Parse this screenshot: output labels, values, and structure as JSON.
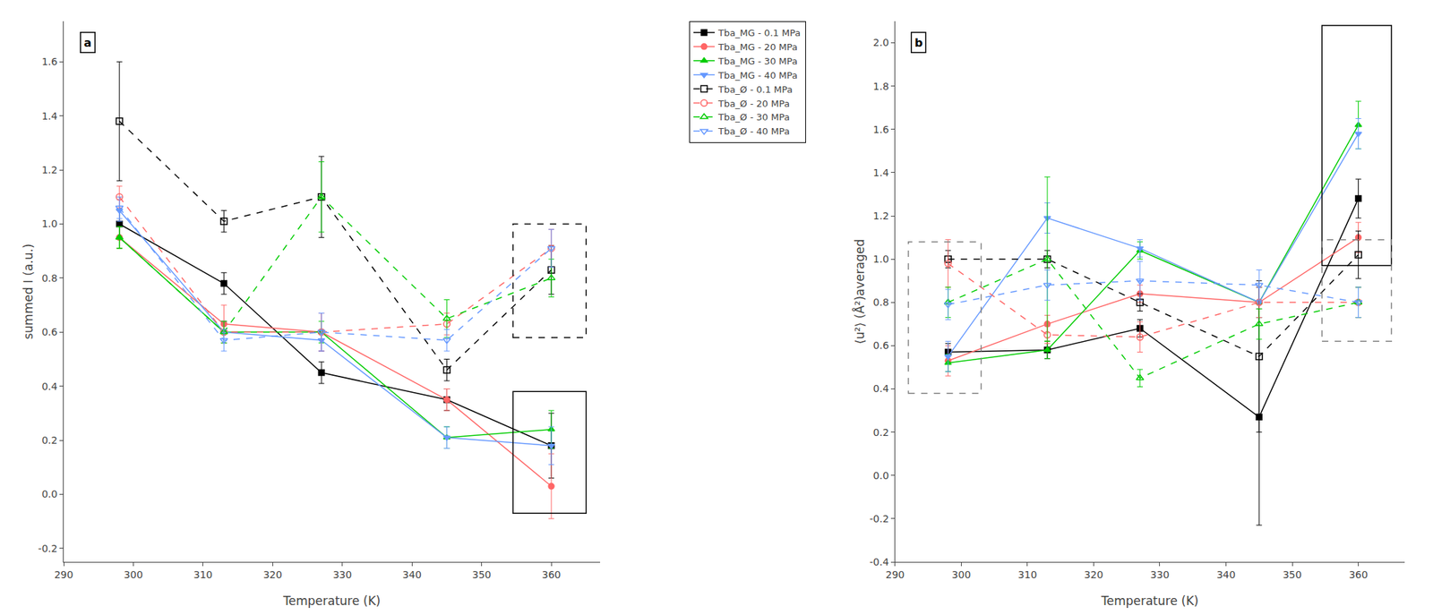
{
  "chart_data": [
    {
      "type": "line",
      "xlabel": "Temperature (K)",
      "ylabel": "summed I (a.u.)",
      "annotations": [
        "a"
      ],
      "x": [
        298,
        313,
        327,
        345,
        360
      ],
      "xlim": [
        290,
        367
      ],
      "xticks": [
        290,
        300,
        310,
        320,
        330,
        340,
        350,
        360
      ],
      "ylim": [
        -0.25,
        1.75
      ],
      "yticks": [
        -0.2,
        {
          "value": 0.0,
          "label": "0.0"
        },
        0.2,
        0.4,
        0.6,
        0.8,
        {
          "value": 1.0,
          "label": "1.0"
        },
        1.2,
        1.4,
        1.6
      ],
      "grid": false,
      "legend": "top",
      "series": [
        {
          "name": "Tba_MG - 0.1 MPa",
          "color": "#000000",
          "marker": "square",
          "line_style": "solid",
          "values": [
            1.0,
            0.78,
            0.45,
            0.35,
            0.18
          ],
          "errors": [
            0.05,
            0.04,
            0.04,
            0.04,
            0.12
          ]
        },
        {
          "name": "Tba_MG - 20 MPa",
          "color": "#ff6666",
          "marker": "circle",
          "line_style": "solid",
          "values": [
            0.95,
            0.63,
            0.6,
            0.35,
            0.03
          ],
          "errors": [
            0.04,
            0.07,
            0.07,
            0.04,
            0.12
          ]
        },
        {
          "name": "Tba_MG - 30 MPa",
          "color": "#00cc00",
          "marker": "triangle-up",
          "line_style": "solid",
          "values": [
            0.95,
            0.6,
            0.6,
            0.21,
            0.24
          ],
          "errors": [
            0.04,
            0.04,
            0.04,
            0.04,
            0.07
          ]
        },
        {
          "name": "Tba_MG - 40 MPa",
          "color": "#6699ff",
          "marker": "triangle-down",
          "line_style": "solid",
          "values": [
            1.05,
            0.6,
            0.57,
            0.21,
            0.18
          ],
          "errors": [
            0.04,
            0.04,
            0.04,
            0.04,
            0.07
          ]
        },
        {
          "name": "Tba_Ø - 0.1 MPa",
          "color": "#000000",
          "marker": "square-open",
          "line_style": "dashed",
          "values": [
            1.38,
            1.01,
            1.1,
            0.46,
            0.83
          ],
          "errors": [
            0.22,
            0.04,
            0.15,
            0.04,
            0.09
          ]
        },
        {
          "name": "Tba_Ø - 20 MPa",
          "color": "#ff6666",
          "marker": "circle-open",
          "line_style": "dashed",
          "values": [
            1.1,
            0.6,
            0.6,
            0.63,
            0.91
          ],
          "errors": [
            0.04,
            0.04,
            0.07,
            0.04,
            0.07
          ]
        },
        {
          "name": "Tba_Ø - 30 MPa",
          "color": "#00cc00",
          "marker": "triangle-up-open",
          "line_style": "dashed",
          "values": [
            0.95,
            0.6,
            1.1,
            0.65,
            0.8
          ],
          "errors": [
            0.04,
            0.04,
            0.13,
            0.07,
            0.07
          ]
        },
        {
          "name": "Tba_Ø - 40 MPa",
          "color": "#6699ff",
          "marker": "triangle-down-open",
          "line_style": "dashed",
          "values": [
            1.06,
            0.57,
            0.6,
            0.57,
            0.91
          ],
          "errors": [
            0.04,
            0.04,
            0.07,
            0.04,
            0.07
          ]
        }
      ],
      "rectangles": [
        {
          "x": [
            354.5,
            365
          ],
          "y": [
            -0.07,
            0.38
          ],
          "color": "#000000",
          "line_style": "solid"
        },
        {
          "x": [
            354.5,
            365
          ],
          "y": [
            0.58,
            1.0
          ],
          "color": "#000000",
          "line_style": "dashed"
        }
      ]
    },
    {
      "type": "line",
      "xlabel": "Temperature (K)",
      "ylabel": "⟨u²⟩ (Å²)averaged",
      "annotations": [
        "b"
      ],
      "x": [
        298,
        313,
        327,
        345,
        360
      ],
      "xlim": [
        290,
        367
      ],
      "xticks": [
        290,
        300,
        310,
        320,
        330,
        340,
        350,
        360
      ],
      "ylim": [
        -0.4,
        2.1
      ],
      "yticks": [
        -0.4,
        -0.2,
        {
          "value": 0.0,
          "label": "0.0"
        },
        0.2,
        0.4,
        0.6,
        0.8,
        {
          "value": 1.0,
          "label": "1.0"
        },
        1.2,
        1.4,
        1.6,
        1.8,
        {
          "value": 2.0,
          "label": "2.0"
        }
      ],
      "grid": false,
      "series": [
        {
          "name": "Tba_MG - 0.1 MPa",
          "color": "#000000",
          "marker": "square",
          "line_style": "solid",
          "values": [
            0.57,
            0.58,
            0.68,
            0.27,
            1.28
          ],
          "errors": [
            0.04,
            0.04,
            0.04,
            0.5,
            0.09
          ]
        },
        {
          "name": "Tba_MG - 20 MPa",
          "color": "#ff6666",
          "marker": "circle",
          "line_style": "solid",
          "values": [
            0.53,
            0.7,
            0.84,
            0.8,
            1.1
          ],
          "errors": [
            0.07,
            0.04,
            0.04,
            0.07,
            0.07
          ]
        },
        {
          "name": "Tba_MG - 30 MPa",
          "color": "#00cc00",
          "marker": "triangle-up",
          "line_style": "solid",
          "values": [
            0.52,
            0.58,
            1.04,
            0.8,
            1.62
          ],
          "errors": [
            0.04,
            0.04,
            0.04,
            0.07,
            0.11
          ]
        },
        {
          "name": "Tba_MG - 40 MPa",
          "color": "#6699ff",
          "marker": "triangle-down",
          "line_style": "solid",
          "values": [
            0.55,
            1.19,
            1.05,
            0.8,
            1.58
          ],
          "errors": [
            0.07,
            0.07,
            0.04,
            0.07,
            0.07
          ]
        },
        {
          "name": "Tba_Ø - 0.1 MPa",
          "color": "#000000",
          "marker": "square-open",
          "line_style": "dashed",
          "values": [
            1.0,
            1.0,
            0.8,
            0.55,
            1.02
          ],
          "errors": [
            0.04,
            0.04,
            0.04,
            0.35,
            0.11
          ]
        },
        {
          "name": "Tba_Ø - 20 MPa",
          "color": "#ff6666",
          "marker": "circle-open",
          "line_style": "dashed",
          "values": [
            0.98,
            0.65,
            0.64,
            0.8,
            0.8
          ],
          "errors": [
            0.11,
            0.04,
            0.07,
            0.07,
            0.07
          ]
        },
        {
          "name": "Tba_Ø - 30 MPa",
          "color": "#00cc00",
          "marker": "triangle-up-open",
          "line_style": "dashed",
          "values": [
            0.8,
            1.0,
            0.45,
            0.7,
            0.8
          ],
          "errors": [
            0.07,
            0.38,
            0.04,
            0.07,
            0.07
          ]
        },
        {
          "name": "Tba_Ø - 40 MPa",
          "color": "#6699ff",
          "marker": "triangle-down-open",
          "line_style": "dashed",
          "values": [
            0.79,
            0.88,
            0.9,
            0.88,
            0.8
          ],
          "errors": [
            0.07,
            0.07,
            0.09,
            0.07,
            0.07
          ]
        }
      ],
      "rectangles": [
        {
          "x": [
            354.5,
            365
          ],
          "y": [
            0.97,
            2.08
          ],
          "color": "#000000",
          "line_style": "solid"
        },
        {
          "x": [
            292,
            303
          ],
          "y": [
            0.38,
            1.08
          ],
          "color": "#808080",
          "line_style": "dashed"
        },
        {
          "x": [
            354.5,
            365
          ],
          "y": [
            0.62,
            1.09
          ],
          "color": "#808080",
          "line_style": "dashed"
        }
      ]
    }
  ]
}
